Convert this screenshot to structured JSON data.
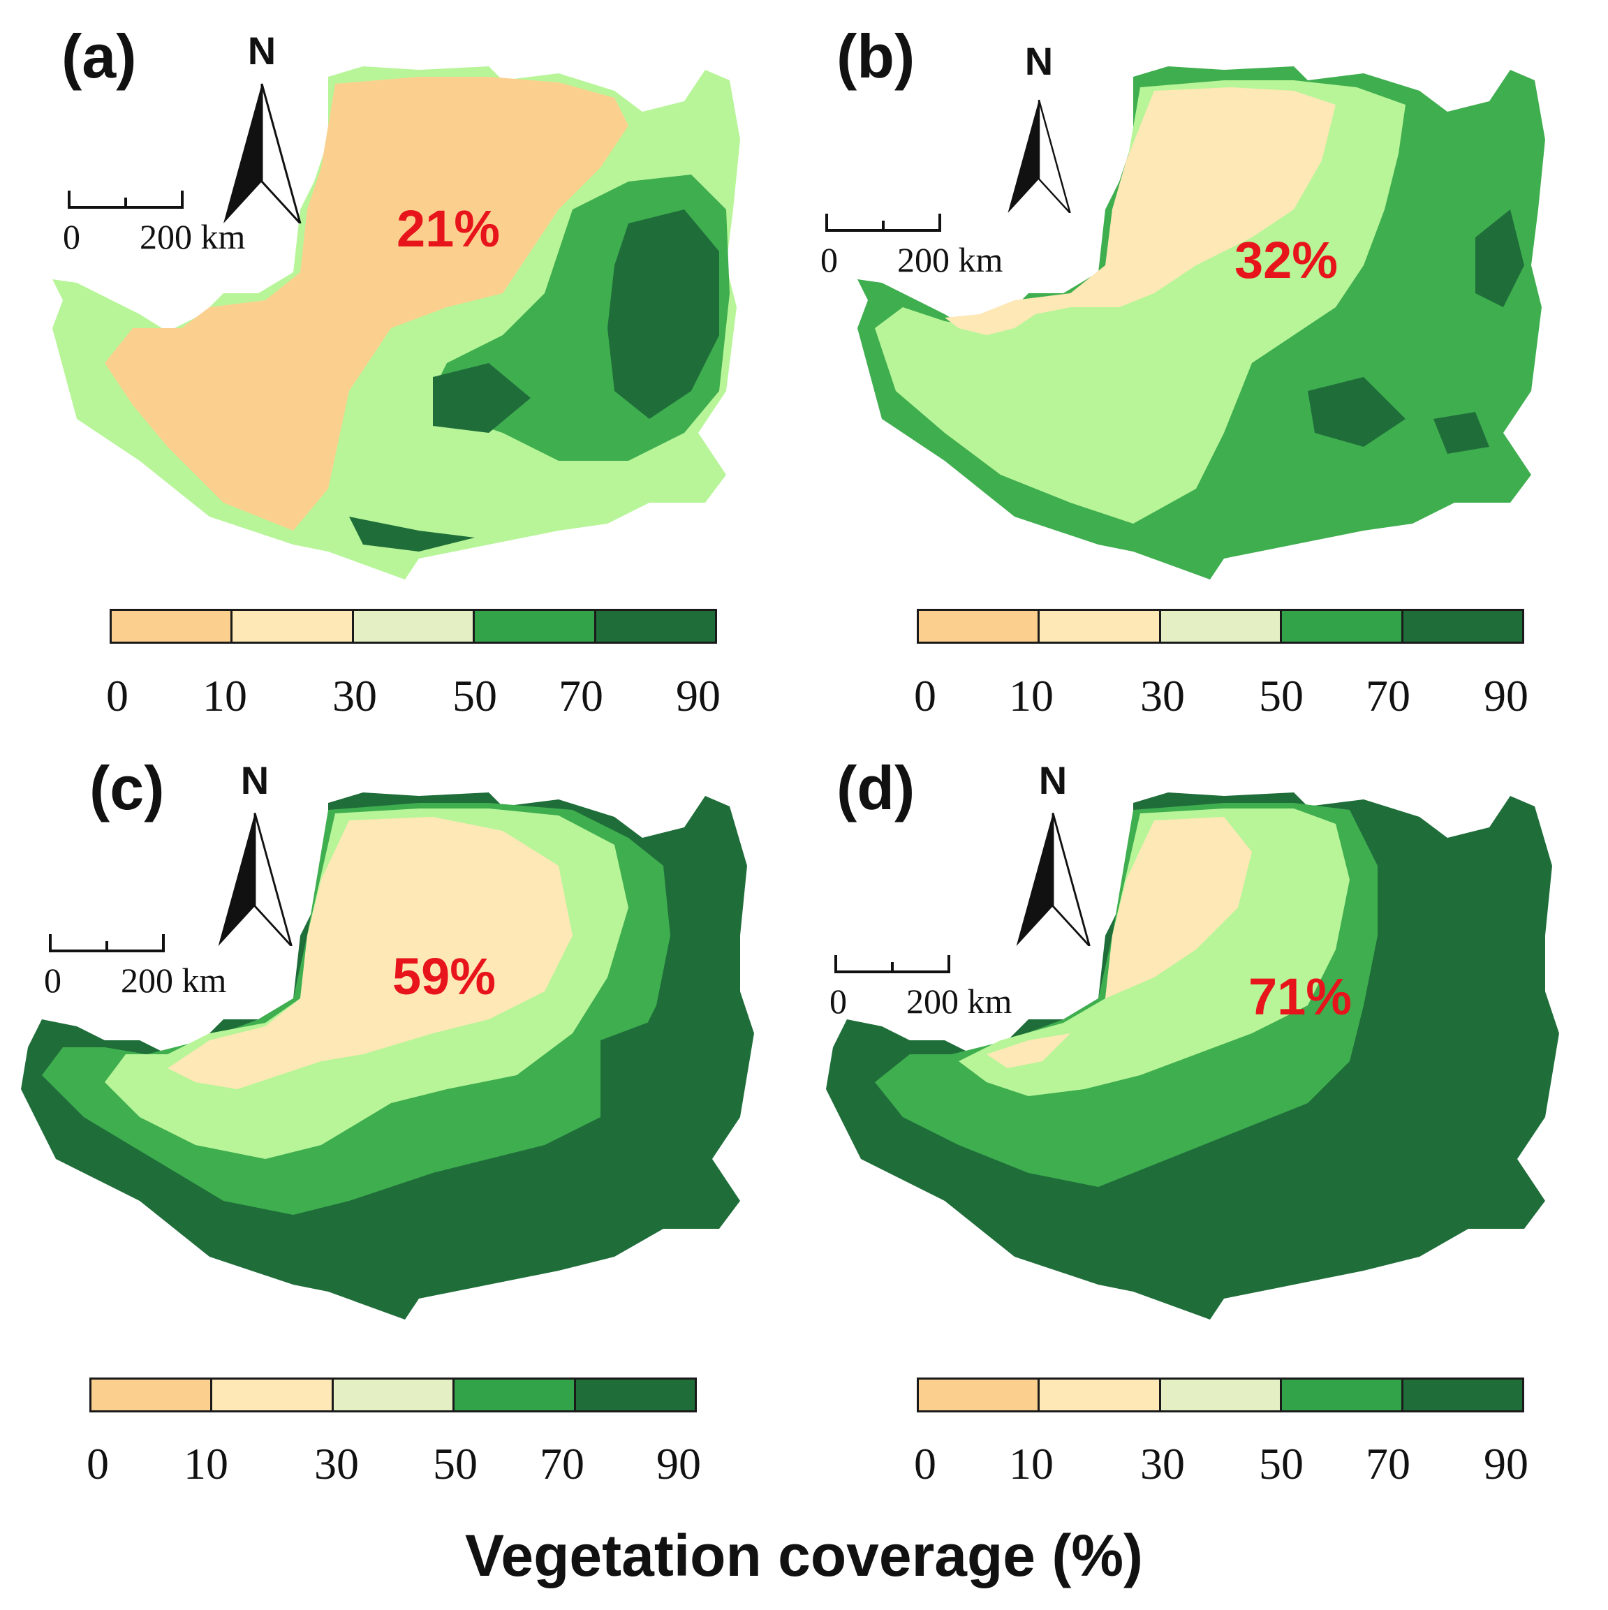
{
  "colors": {
    "c0_10": "#fbd08f",
    "c10_30": "#fde8b6",
    "c30_50": "#e4f0c4",
    "c50_70": "#33a34a",
    "c70_90": "#1f6e3a",
    "pct_text": "#e8141b"
  },
  "legend_ticks": [
    "0",
    "10",
    "30",
    "50",
    "70",
    "90"
  ],
  "scale_bar": {
    "zero": "0",
    "distance": "200 km"
  },
  "north_label": "N",
  "axis_title": "Vegetation coverage (%)",
  "panels": [
    {
      "label": "(a)",
      "coverage": "21%",
      "palette": [
        "#fbd08f",
        "#fbd08f",
        "#b7f598",
        "#3fae4f",
        "#1f6e3a"
      ],
      "dominant": "desert"
    },
    {
      "label": "(b)",
      "coverage": "32%",
      "palette": [
        "#fde8b6",
        "#b7f598",
        "#b7f598",
        "#3fae4f",
        "#1f6e3a"
      ],
      "dominant": "mixed"
    },
    {
      "label": "(c)",
      "coverage": "59%",
      "palette": [
        "#fde8b6",
        "#b7f598",
        "#b7f598",
        "#3fae4f",
        "#1f6e3a"
      ],
      "dominant": "green"
    },
    {
      "label": "(d)",
      "coverage": "71%",
      "palette": [
        "#fde8b6",
        "#b7f598",
        "#b7f598",
        "#3fae4f",
        "#1f6e3a"
      ],
      "dominant": "greenest"
    }
  ]
}
